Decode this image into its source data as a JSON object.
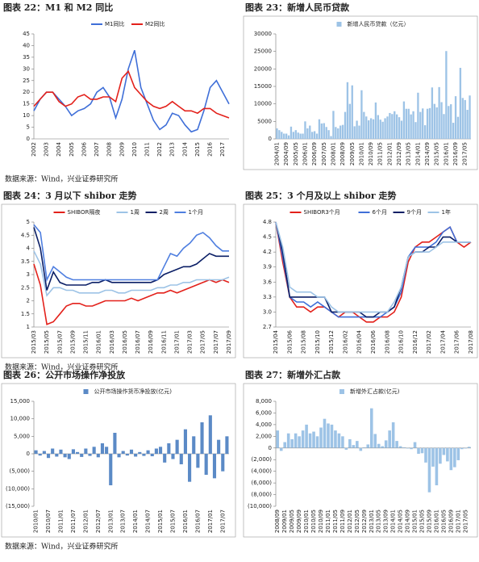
{
  "chart_data": [
    {
      "type": "line",
      "title": "图表 22：M1 和 M2 同比",
      "source": "数据来源：Wind，兴业证券研究所",
      "categories": [
        "2002",
        null,
        "2003",
        null,
        "2004",
        null,
        "2005",
        null,
        "2006",
        null,
        "2007",
        null,
        "2008",
        null,
        "2009",
        null,
        "2010",
        null,
        "2011",
        null,
        "2012",
        null,
        "2013",
        null,
        "2014",
        null,
        "2015",
        null,
        "2016",
        null,
        "2017",
        null
      ],
      "series": [
        {
          "name": "M1同比",
          "color": "#3f6fd8",
          "values": [
            12,
            17,
            20,
            20,
            17,
            14,
            10,
            12,
            13,
            15,
            20,
            22,
            18,
            9,
            17,
            30,
            38,
            22,
            15,
            8,
            4,
            6,
            11,
            10,
            6,
            3,
            4,
            12,
            22,
            25,
            20,
            15
          ]
        },
        {
          "name": "M2同比",
          "color": "#e3211b",
          "values": [
            14,
            17,
            20,
            20,
            16,
            14,
            15,
            18,
            19,
            17,
            17,
            18,
            18,
            16,
            26,
            29,
            22,
            19,
            16,
            14,
            13,
            14,
            16,
            14,
            12,
            12,
            11,
            13,
            13,
            11,
            10,
            9
          ]
        }
      ],
      "ylim": [
        0,
        45
      ],
      "yticks": [
        0,
        5,
        10,
        15,
        20,
        25,
        30,
        35,
        40,
        45
      ],
      "frame": false
    },
    {
      "type": "bar",
      "title": "图表 23：新增人民币贷款",
      "categories": [
        "2004/01",
        null,
        null,
        null,
        "2004/09",
        null,
        null,
        null,
        "2005/05",
        null,
        null,
        null,
        "2006/01",
        null,
        null,
        null,
        "2006/09",
        null,
        null,
        null,
        "2007/05",
        null,
        null,
        null,
        "2008/01",
        null,
        null,
        null,
        "2008/09",
        null,
        null,
        null,
        "2009/05",
        null,
        null,
        null,
        "2010/01",
        null,
        null,
        null,
        "2010/09",
        null,
        null,
        null,
        "2011/05",
        null,
        null,
        null,
        "2012/01",
        null,
        null,
        null,
        "2012/09",
        null,
        null,
        null,
        "2013/05",
        null,
        null,
        null,
        "2014/01",
        null,
        null,
        null,
        "2014/09",
        null,
        null,
        null,
        "2015/05",
        null,
        null,
        null,
        "2016/01",
        null,
        null,
        null,
        "2016/09",
        null,
        null,
        null,
        "2017/05",
        null,
        null
      ],
      "series": [
        {
          "name": "新增人民币贷款（亿元）",
          "color": "#9dc3e6",
          "values": [
            3000,
            2500,
            2000,
            1500,
            1500,
            1000,
            3500,
            2000,
            2500,
            1800,
            1500,
            1500,
            5000,
            3000,
            3800,
            2000,
            2200,
            1500,
            5600,
            4400,
            4500,
            3400,
            2500,
            800,
            8000,
            3400,
            3000,
            3800,
            4000,
            7700,
            16200,
            10000,
            15300,
            3600,
            5200,
            3800,
            13900,
            7700,
            6400,
            5300,
            5900,
            5600,
            10400,
            6800,
            5500,
            4900,
            5900,
            6400,
            7400,
            7100,
            7900,
            7000,
            6200,
            5200,
            10700,
            8600,
            8600,
            7000,
            7900,
            4800,
            13200,
            7700,
            8700,
            3900,
            8600,
            8800,
            14700,
            10000,
            9000,
            14800,
            10500,
            7100,
            25100,
            9400,
            9900,
            4600,
            12200,
            6300,
            20300,
            11700,
            11100,
            8300,
            12400
          ]
        }
      ],
      "ylim": [
        0,
        30000
      ],
      "yticks": [
        0,
        5000,
        10000,
        15000,
        20000,
        25000,
        30000
      ],
      "frame": true
    },
    {
      "type": "line",
      "title": "图表 24：3 月以下 shibor 走势",
      "source": "数据来源：Wind，兴业证券研究所",
      "categories": [
        "2015/03",
        null,
        "2015/05",
        null,
        "2015/07",
        null,
        "2015/09",
        null,
        "2015/11",
        null,
        "2016/01",
        null,
        "2016/03",
        null,
        "2016/05",
        null,
        "2016/07",
        null,
        "2016/09",
        null,
        "2016/11",
        null,
        "2017/01",
        null,
        "2017/03",
        null,
        "2017/05",
        null,
        "2017/07",
        null,
        "2017/09"
      ],
      "series": [
        {
          "name": "SHIBOR隔夜",
          "color": "#e3211b",
          "values": [
            3.4,
            2.6,
            1.1,
            1.2,
            1.5,
            1.8,
            1.9,
            1.9,
            1.8,
            1.8,
            1.9,
            2.0,
            2.0,
            2.0,
            2.0,
            2.1,
            2.0,
            2.1,
            2.2,
            2.3,
            2.3,
            2.4,
            2.3,
            2.4,
            2.5,
            2.6,
            2.7,
            2.8,
            2.7,
            2.8,
            2.7
          ]
        },
        {
          "name": "1周",
          "color": "#9dc3e6",
          "values": [
            3.9,
            3.4,
            2.2,
            2.5,
            2.5,
            2.4,
            2.4,
            2.3,
            2.3,
            2.3,
            2.3,
            2.4,
            2.4,
            2.3,
            2.3,
            2.4,
            2.4,
            2.4,
            2.4,
            2.5,
            2.5,
            2.6,
            2.6,
            2.7,
            2.7,
            2.8,
            2.8,
            2.8,
            2.8,
            2.8,
            2.9
          ]
        },
        {
          "name": "2周",
          "color": "#0b1f66",
          "values": [
            4.8,
            4.0,
            2.4,
            3.1,
            2.7,
            2.6,
            2.6,
            2.6,
            2.6,
            2.7,
            2.7,
            2.8,
            2.7,
            2.7,
            2.7,
            2.7,
            2.7,
            2.7,
            2.7,
            2.8,
            3.0,
            3.1,
            3.2,
            3.3,
            3.3,
            3.4,
            3.6,
            3.8,
            3.7,
            3.7,
            3.7
          ]
        },
        {
          "name": "1个月",
          "color": "#4f7fe0",
          "values": [
            4.9,
            4.6,
            2.8,
            3.3,
            3.1,
            2.9,
            2.8,
            2.8,
            2.8,
            2.8,
            2.8,
            2.8,
            2.8,
            2.8,
            2.8,
            2.8,
            2.8,
            2.8,
            2.8,
            2.8,
            3.3,
            3.8,
            3.7,
            4.0,
            4.2,
            4.5,
            4.6,
            4.4,
            4.1,
            3.9,
            3.9
          ]
        }
      ],
      "ylim": [
        1,
        5
      ],
      "yticks": [
        1,
        1.5,
        2,
        2.5,
        3,
        3.5,
        4,
        4.5,
        5
      ],
      "frame": true
    },
    {
      "type": "line",
      "title": "图表 25：3 个月及以上 shibor 走势",
      "categories": [
        "2015/04",
        null,
        "2015/06",
        null,
        "2015/08",
        null,
        "2015/10",
        null,
        "2015/12",
        null,
        "2016/02",
        null,
        "2016/04",
        null,
        "2016/06",
        null,
        "2016/08",
        null,
        "2016/10",
        null,
        "2016/12",
        null,
        "2017/02",
        null,
        "2017/04",
        null,
        "2017/06",
        null,
        "2017/08"
      ],
      "series": [
        {
          "name": "SHIBOR3个月",
          "color": "#e3211b",
          "values": [
            4.8,
            4.0,
            3.3,
            3.1,
            3.1,
            3.0,
            3.1,
            3.1,
            3.0,
            2.9,
            3.0,
            3.0,
            2.9,
            2.8,
            2.8,
            2.9,
            2.9,
            3.0,
            3.3,
            4.0,
            4.3,
            4.4,
            4.4,
            4.5,
            4.6,
            4.7,
            4.4,
            4.3,
            4.4
          ]
        },
        {
          "name": "6个月",
          "color": "#3f6fd8",
          "values": [
            4.8,
            4.1,
            3.3,
            3.2,
            3.2,
            3.1,
            3.2,
            3.1,
            3.0,
            2.9,
            2.9,
            2.9,
            2.9,
            2.9,
            2.9,
            2.9,
            3.0,
            3.1,
            3.4,
            4.1,
            4.3,
            4.3,
            4.3,
            4.4,
            4.6,
            4.7,
            4.4,
            4.4,
            4.4
          ]
        },
        {
          "name": "9个月",
          "color": "#0b1f66",
          "values": [
            4.8,
            4.2,
            3.3,
            3.3,
            3.3,
            3.3,
            3.3,
            3.3,
            3.0,
            3.0,
            3.0,
            3.0,
            3.0,
            2.9,
            2.9,
            3.0,
            3.0,
            3.1,
            3.5,
            4.1,
            4.2,
            4.2,
            4.3,
            4.3,
            4.5,
            4.5,
            4.4,
            4.4,
            4.4
          ]
        },
        {
          "name": "1年",
          "color": "#9dc3e6",
          "values": [
            4.8,
            4.3,
            3.5,
            3.4,
            3.4,
            3.4,
            3.3,
            3.3,
            3.1,
            3.0,
            3.0,
            3.0,
            3.0,
            3.0,
            3.0,
            3.0,
            3.0,
            3.2,
            3.5,
            4.1,
            4.2,
            4.2,
            4.2,
            4.3,
            4.4,
            4.4,
            4.4,
            4.4,
            4.4
          ]
        }
      ],
      "ylim": [
        2.7,
        4.8
      ],
      "yticks": [
        2.7,
        {
          "value": 3,
          "label": "3.0"
        },
        3.3,
        3.6,
        3.9,
        4.2,
        4.5,
        4.8
      ],
      "frame": true
    },
    {
      "type": "bar",
      "title": "图表 26：公开市场操作净投放",
      "source": "数据来源：Wind，兴业证券研究所",
      "categories": [
        "2010/01",
        null,
        null,
        "2010/07",
        null,
        null,
        "2011/01",
        null,
        null,
        "2011/07",
        null,
        null,
        "2012/01",
        null,
        null,
        "2012/07",
        null,
        null,
        "2013/01",
        null,
        null,
        "2013/07",
        null,
        null,
        "2014/01",
        null,
        null,
        "2014/07",
        null,
        null,
        "2015/01",
        null,
        null,
        "2015/07",
        null,
        null,
        "2016/01",
        null,
        null,
        "2016/07",
        null,
        null,
        "2017/01",
        null,
        null,
        "2017/07",
        null
      ],
      "series": [
        {
          "name": "公开市场操作货币净投放(亿元)",
          "color": "#5b8ac6",
          "values": [
            1000,
            -500,
            800,
            -1200,
            1500,
            -800,
            1200,
            -1000,
            -1500,
            1300,
            500,
            -900,
            1500,
            -600,
            2000,
            -1000,
            3000,
            2000,
            -9000,
            6000,
            -1000,
            800,
            -500,
            1200,
            -800,
            500,
            -600,
            1000,
            -700,
            1500,
            2000,
            -2500,
            3000,
            -1500,
            4000,
            -3000,
            7000,
            -8000,
            5000,
            -4000,
            9000,
            -6000,
            11000,
            -7000,
            4000,
            -5000,
            5000
          ]
        }
      ],
      "ylim": [
        -15000,
        15000
      ],
      "yticks": [
        {
          "value": -15000,
          "label": "(15,000)"
        },
        {
          "value": -10000,
          "label": "(10,000)"
        },
        {
          "value": -5000,
          "label": "(5,000)"
        },
        0,
        {
          "value": 5000,
          "label": "5,000"
        },
        {
          "value": 10000,
          "label": "10,000"
        },
        {
          "value": 15000,
          "label": "15,000"
        }
      ],
      "frame": true
    },
    {
      "type": "bar",
      "title": "图表 27：新增外汇占款",
      "categories": [
        "2008/09",
        null,
        "2009/01",
        null,
        "2009/05",
        null,
        "2009/09",
        null,
        "2010/01",
        null,
        "2010/05",
        null,
        "2010/09",
        null,
        "2011/01",
        null,
        "2011/05",
        null,
        "2011/09",
        null,
        "2012/01",
        null,
        "2012/05",
        null,
        "2012/09",
        null,
        "2013/01",
        null,
        "2013/05",
        null,
        "2013/09",
        null,
        "2014/01",
        null,
        "2014/05",
        null,
        "2014/09",
        null,
        "2015/01",
        null,
        "2015/05",
        null,
        "2015/09",
        null,
        "2016/01",
        null,
        "2016/05",
        null,
        "2016/09",
        null,
        "2017/01",
        null,
        "2017/05",
        null
      ],
      "series": [
        {
          "name": "新增外汇占款(亿元)",
          "color": "#9dc3e6",
          "values": [
            3000,
            -500,
            1000,
            2500,
            1500,
            2500,
            2000,
            3000,
            4000,
            2500,
            2800,
            2000,
            3500,
            5000,
            4200,
            4000,
            3000,
            2500,
            2000,
            -300,
            1500,
            500,
            1200,
            -500,
            100,
            600,
            6800,
            2400,
            700,
            300,
            1300,
            3000,
            4400,
            1200,
            300,
            100,
            -100,
            -200,
            1000,
            -1000,
            -900,
            -2500,
            -7600,
            -3200,
            -6400,
            -2700,
            -1200,
            -2300,
            -3800,
            -3300,
            -2100,
            -200,
            -100,
            200
          ]
        }
      ],
      "ylim": [
        -10000,
        8000
      ],
      "yticks": [
        {
          "value": -10000,
          "label": "(10,000)"
        },
        {
          "value": -8000,
          "label": "(8,000)"
        },
        {
          "value": -6000,
          "label": "(6,000)"
        },
        {
          "value": -4000,
          "label": "(4,000)"
        },
        {
          "value": -2000,
          "label": "(2,000)"
        },
        0,
        {
          "value": 2000,
          "label": "2,000"
        },
        {
          "value": 4000,
          "label": "4,000"
        },
        {
          "value": 6000,
          "label": "6,000"
        },
        {
          "value": 8000,
          "label": "8,000"
        }
      ],
      "frame": true
    }
  ]
}
